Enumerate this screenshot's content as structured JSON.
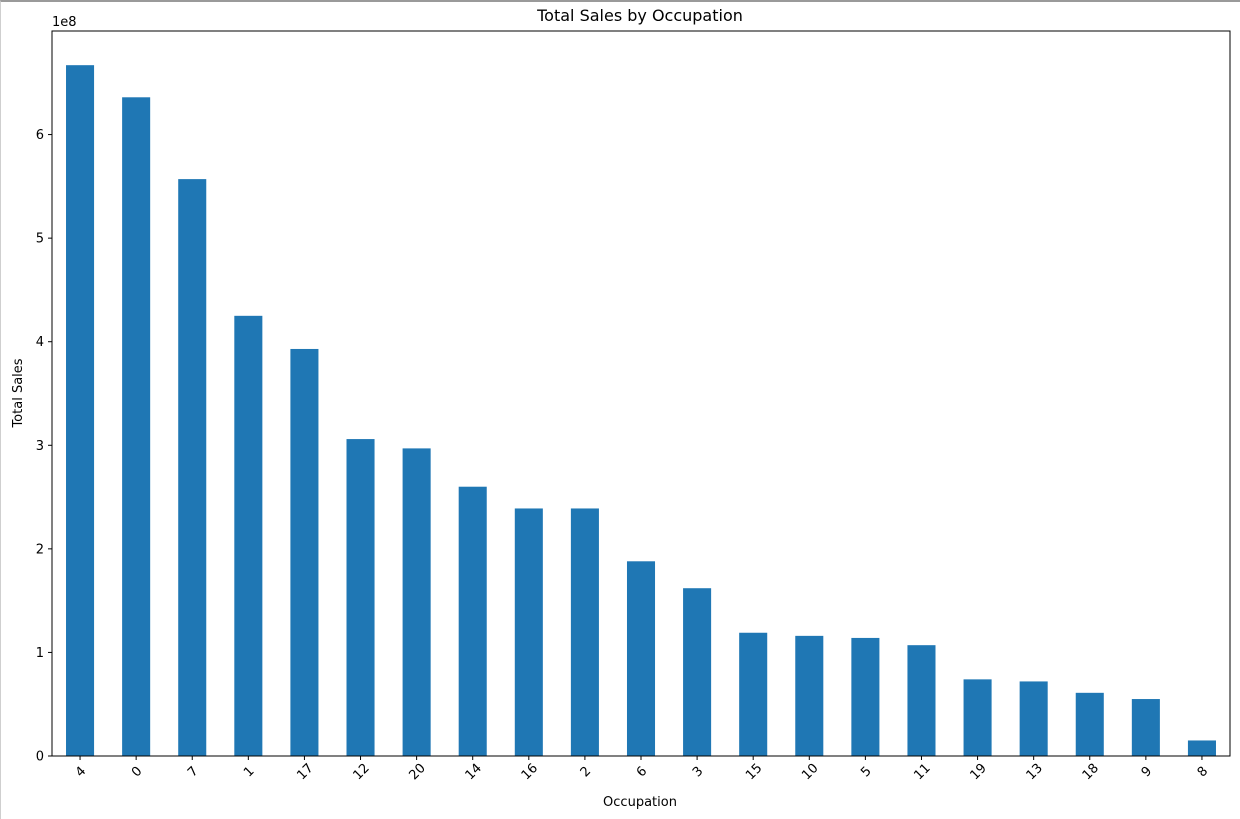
{
  "chart_data": {
    "type": "bar",
    "title": "Total Sales by Occupation",
    "xlabel": "Occupation",
    "ylabel": "Total Sales",
    "y_offset_label": "1e8",
    "y_multiplier": 100000000,
    "ylim": [
      0,
      7.0
    ],
    "yticks": [
      0,
      1,
      2,
      3,
      4,
      5,
      6
    ],
    "ytick_labels": [
      "0",
      "1",
      "2",
      "3",
      "4",
      "5",
      "6"
    ],
    "categories": [
      "4",
      "0",
      "7",
      "1",
      "17",
      "12",
      "20",
      "14",
      "16",
      "2",
      "6",
      "3",
      "15",
      "10",
      "5",
      "11",
      "19",
      "13",
      "18",
      "9",
      "8"
    ],
    "values": [
      6.67,
      6.36,
      5.57,
      4.25,
      3.93,
      3.06,
      2.97,
      2.6,
      2.39,
      2.39,
      1.88,
      1.62,
      1.19,
      1.16,
      1.14,
      1.07,
      0.74,
      0.72,
      0.61,
      0.55,
      0.15
    ],
    "bar_color": "#1f77b4",
    "grid": false,
    "legend": "none"
  }
}
